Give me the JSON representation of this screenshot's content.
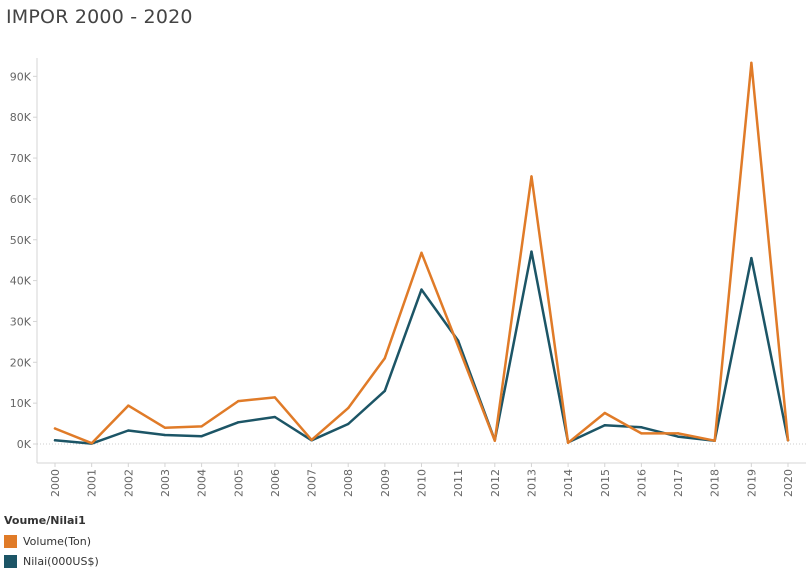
{
  "chart_data": {
    "type": "line",
    "title": "IMPOR 2000 - 2020",
    "xlabel": "",
    "ylabel": "",
    "categories": [
      "2000",
      "2001",
      "2002",
      "2003",
      "2004",
      "2005",
      "2006",
      "2007",
      "2008",
      "2009",
      "2010",
      "2011",
      "2012",
      "2013",
      "2014",
      "2015",
      "2016",
      "2017",
      "2018",
      "2019",
      "2020"
    ],
    "ylim": [
      0,
      95000
    ],
    "yticks": [
      0,
      10000,
      20000,
      30000,
      40000,
      50000,
      60000,
      70000,
      80000,
      90000
    ],
    "ytick_labels": [
      "0K",
      "10K",
      "20K",
      "30K",
      "40K",
      "50K",
      "60K",
      "70K",
      "80K",
      "90K"
    ],
    "grid": false,
    "legend_title": "Voume/Nilai1",
    "legend_position": "bottom-left",
    "series": [
      {
        "name": "Volume(Ton)",
        "color": "#e07b28",
        "values": [
          3800,
          200,
          9400,
          4000,
          4300,
          10500,
          11400,
          1000,
          8800,
          21000,
          46800,
          24000,
          800,
          65500,
          300,
          7600,
          2600,
          2600,
          800,
          93300,
          900
        ]
      },
      {
        "name": "Nilai(000US$)",
        "color": "#1c5566",
        "values": [
          900,
          100,
          3300,
          2200,
          1900,
          5300,
          6600,
          900,
          4900,
          13000,
          37800,
          25300,
          900,
          47100,
          400,
          4600,
          4100,
          1800,
          800,
          45500,
          900
        ]
      }
    ]
  }
}
